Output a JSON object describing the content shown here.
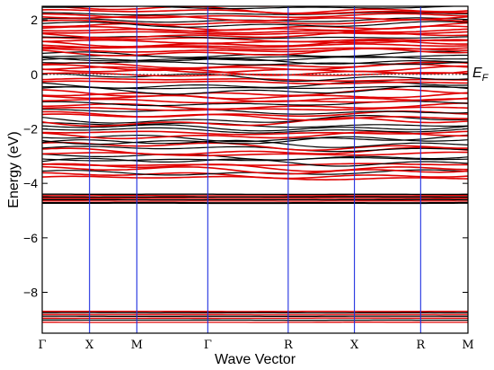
{
  "chart_data": {
    "type": "line",
    "title": "",
    "xlabel": "Wave Vector",
    "ylabel": "Energy (eV)",
    "ylim": [
      -9.5,
      2.5
    ],
    "yticks": [
      -8,
      -6,
      -4,
      -2,
      0,
      2
    ],
    "kpoints": [
      "Γ",
      "X",
      "M",
      "Γ",
      "R",
      "X",
      "R",
      "M"
    ],
    "kpoint_positions": [
      0,
      0.5,
      1.0,
      1.75,
      2.6,
      3.3,
      4.0,
      4.5
    ],
    "fermi_level": 0,
    "fermi_label": "E",
    "fermi_subscript": "F",
    "series_colors": {
      "spin_a": "#000000",
      "spin_b": "#e00000",
      "symmetry_lines": "#2030e0"
    },
    "deep_bands": [
      -8.7,
      -8.75,
      -8.82,
      -8.88,
      -8.95,
      -9.02,
      -9.1
    ],
    "core_bands": [
      -4.4,
      -4.45,
      -4.5,
      -4.55,
      -4.6,
      -4.65,
      -4.72
    ],
    "valence_range": [
      -3.8,
      0
    ],
    "conduction_range": [
      0.1,
      2.5
    ]
  }
}
